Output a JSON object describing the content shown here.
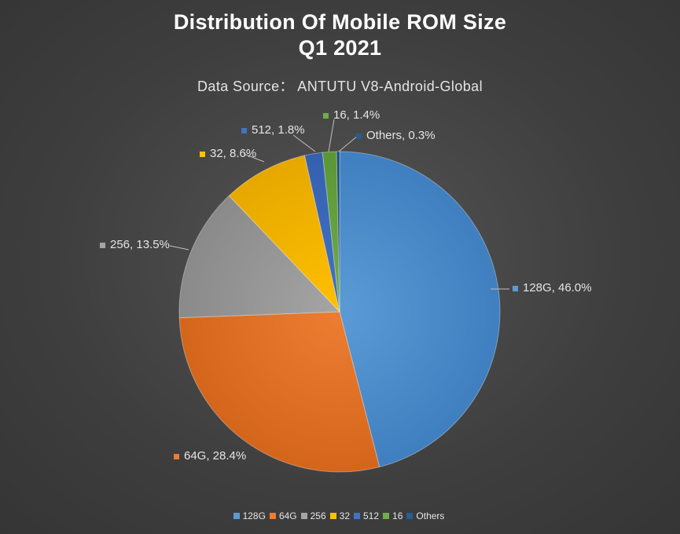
{
  "chart_data": {
    "type": "pie",
    "title_lines": [
      "Distribution Of Mobile ROM Size",
      "Q1 2021"
    ],
    "subtitle": "Data Source： ANTUTU V8-Android-Global",
    "slices": [
      {
        "name": "128G",
        "value": 46.0,
        "label": "128G, 46.0%",
        "color": "#5b9bd5",
        "dark": "#3f7fc0"
      },
      {
        "name": "64G",
        "value": 28.4,
        "label": "64G, 28.4%",
        "color": "#ed7d31",
        "dark": "#d4661c"
      },
      {
        "name": "256",
        "value": 13.5,
        "label": "256, 13.5%",
        "color": "#a5a5a5",
        "dark": "#8a8a8a"
      },
      {
        "name": "32",
        "value": 8.6,
        "label": "32, 8.6%",
        "color": "#ffc000",
        "dark": "#e6a800"
      },
      {
        "name": "512",
        "value": 1.8,
        "label": "512, 1.8%",
        "color": "#4472c4",
        "dark": "#3560b0"
      },
      {
        "name": "16",
        "value": 1.4,
        "label": "16, 1.4%",
        "color": "#70ad47",
        "dark": "#5a9636"
      },
      {
        "name": "Others",
        "value": 0.3,
        "label": "Others, 0.3%",
        "color": "#255e91",
        "dark": "#1d4d78"
      }
    ],
    "legend_position": "bottom",
    "start_angle": "top, clockwise"
  }
}
